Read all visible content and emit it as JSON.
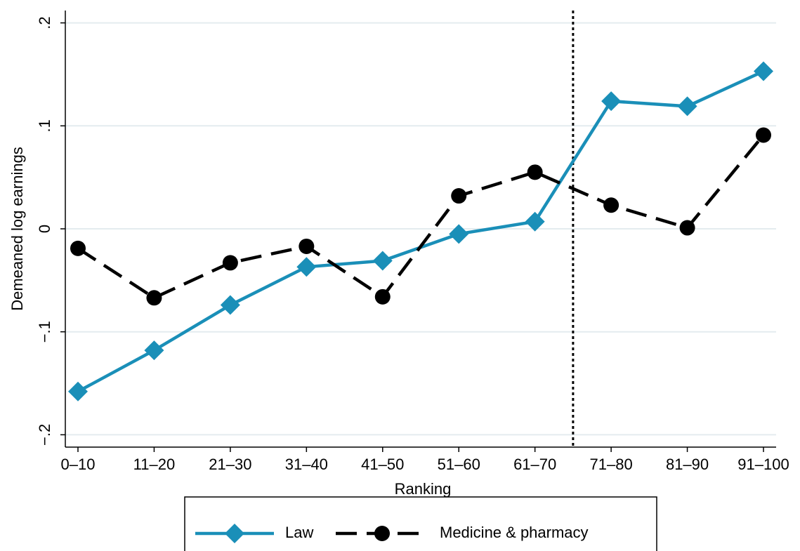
{
  "chart_data": {
    "type": "line",
    "x_label": "Ranking",
    "y_label": "Demeaned log earnings",
    "categories": [
      "0–10",
      "11–20",
      "21–30",
      "31–40",
      "41–50",
      "51–60",
      "61–70",
      "71–80",
      "81–90",
      "91–100"
    ],
    "series": [
      {
        "name": "Law",
        "color": "#1a8fb8",
        "marker": "diamond",
        "dash": "solid",
        "values": [
          -0.158,
          -0.118,
          -0.074,
          -0.037,
          -0.031,
          -0.005,
          0.007,
          0.124,
          0.119,
          0.153
        ]
      },
      {
        "name": "Medicine & pharmacy",
        "color": "#000000",
        "marker": "circle",
        "dash": "dashed",
        "values": [
          -0.019,
          -0.067,
          -0.033,
          -0.017,
          -0.066,
          0.032,
          0.055,
          0.023,
          0.001,
          0.091
        ]
      }
    ],
    "ylim": [
      -0.212,
      0.212
    ],
    "yticks": [
      {
        "value": -0.2,
        "label": "−.2"
      },
      {
        "value": -0.1,
        "label": "−.1"
      },
      0,
      {
        "value": 0.1,
        "label": ".1"
      },
      {
        "value": 0.2,
        "label": ".2"
      }
    ],
    "grid": true,
    "vline": 6.5,
    "legend": "bottom"
  }
}
